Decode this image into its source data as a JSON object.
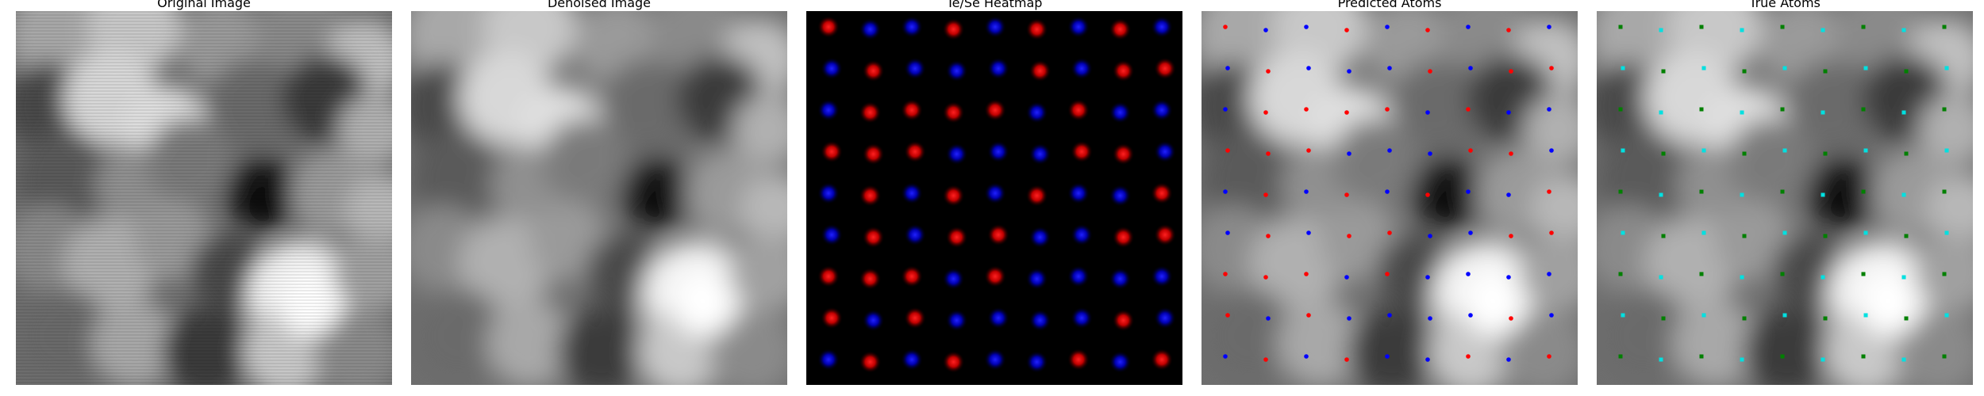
{
  "panels": [
    {
      "title": "Original Image",
      "kind": "original"
    },
    {
      "title": "Denoised Image",
      "kind": "denoised"
    },
    {
      "title": "Te/Se Heatmap",
      "kind": "heatmap"
    },
    {
      "title": "Predicted Atoms",
      "kind": "predicted"
    },
    {
      "title": "True Atoms",
      "kind": "true"
    }
  ],
  "colors": {
    "background": "#ffffff",
    "te_atom": "#ff0000",
    "se_atom": "#0000ff",
    "true_type_a": "#008000",
    "true_type_b": "#00e0e0"
  }
}
